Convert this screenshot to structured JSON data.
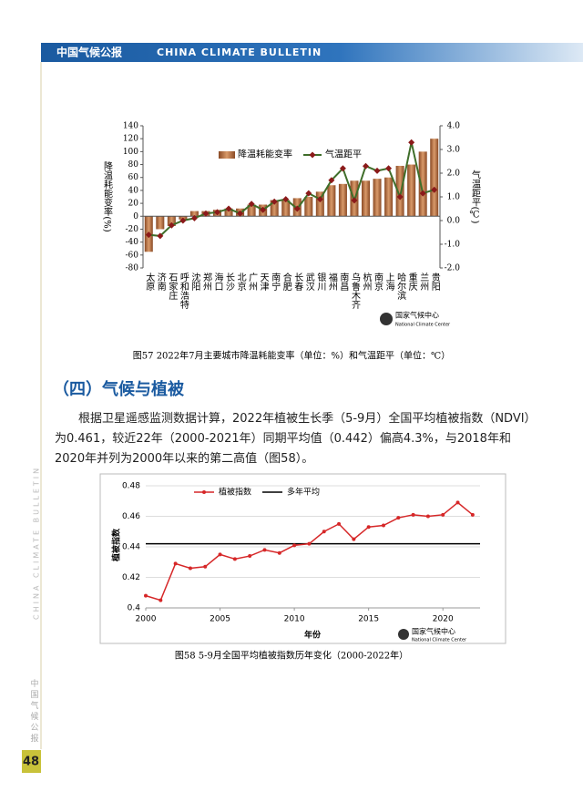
{
  "header": {
    "title_cn": "中国气候公报",
    "title_en": "CHINA CLIMATE BULLETIN"
  },
  "side_text": {
    "en": "CHINA CLIMATE BULLETIN",
    "cn": "中国气候公报"
  },
  "section": {
    "heading": "（四）气候与植被",
    "paragraph": "根据卫星遥感监测数据计算，2022年植被生长季（5-9月）全国平均植被指数（NDVI）为0.461，较近22年（2000-2021年）同期平均值（0.442）偏高4.3%，与2018年和2020年并列为2000年以来的第二高值（图58）。"
  },
  "page_number": "48",
  "chart_data": [
    {
      "type": "bar_line",
      "caption": "图57 2022年7月主要城市降温耗能变率（单位：%）和气温距平（单位：℃）",
      "logo": {
        "cn": "国家气候中心",
        "en": "National Climate Center"
      },
      "categories": [
        "太原",
        "济南",
        "石家庄",
        "呼和浩特",
        "沈阳",
        "郑州",
        "海口",
        "长沙",
        "北京",
        "广州",
        "天津",
        "南宁",
        "合肥",
        "长春",
        "武汉",
        "银川",
        "福州",
        "南昌",
        "乌鲁木齐",
        "杭州",
        "南京",
        "上海",
        "哈尔滨",
        "重庆",
        "兰州",
        "贵阳"
      ],
      "series": [
        {
          "name": "降温耗能变率",
          "color": "#c07a4a",
          "values": [
            -55,
            -20,
            -15,
            -5,
            8,
            8,
            10,
            12,
            12,
            18,
            18,
            25,
            25,
            28,
            30,
            38,
            48,
            50,
            55,
            55,
            58,
            60,
            78,
            80,
            100,
            120
          ]
        },
        {
          "name": "气温距平",
          "color": "#3f6e2a",
          "marker_color": "#8b1a1a",
          "axis": "y2",
          "values": [
            -0.6,
            -0.65,
            -0.2,
            0.0,
            0.1,
            0.3,
            0.35,
            0.5,
            0.3,
            0.7,
            0.45,
            0.8,
            0.9,
            0.5,
            1.15,
            0.9,
            1.7,
            2.2,
            0.85,
            2.3,
            2.1,
            2.2,
            1.0,
            3.3,
            1.15,
            1.3
          ]
        }
      ],
      "ylabel": "降温耗能变率(%)",
      "y2label": "气温距平(℃)",
      "ylim": [
        -80,
        140
      ],
      "yticks": [
        -80,
        -60,
        -40,
        -20,
        0,
        20,
        40,
        60,
        80,
        100,
        120,
        140
      ],
      "y2lim": [
        -2,
        4
      ],
      "y2ticks": [
        {
          "value": -2,
          "label": "-2.0"
        },
        {
          "value": -1,
          "label": "-1.0"
        },
        {
          "value": 0,
          "label": "0.0"
        },
        {
          "value": 1,
          "label": "1.0"
        },
        {
          "value": 2,
          "label": "2.0"
        },
        {
          "value": 3,
          "label": "3.0"
        },
        {
          "value": 4,
          "label": "4.0"
        }
      ]
    },
    {
      "type": "line",
      "caption": "图58 5-9月全国平均植被指数历年变化（2000-2022年）",
      "logo": {
        "cn": "国家气候中心",
        "en": "National Climate Center"
      },
      "x": [
        2000,
        2001,
        2002,
        2003,
        2004,
        2005,
        2006,
        2007,
        2008,
        2009,
        2010,
        2011,
        2012,
        2013,
        2014,
        2015,
        2016,
        2017,
        2018,
        2019,
        2020,
        2021,
        2022
      ],
      "series": [
        {
          "name": "植被指数",
          "color": "#d62728",
          "values": [
            0.408,
            0.405,
            0.429,
            0.426,
            0.427,
            0.435,
            0.432,
            0.434,
            0.438,
            0.436,
            0.441,
            0.442,
            0.45,
            0.455,
            0.445,
            0.453,
            0.454,
            0.459,
            0.461,
            0.46,
            0.461,
            0.469,
            0.461
          ]
        }
      ],
      "reference": {
        "name": "多年平均",
        "value": 0.442,
        "color": "#000000"
      },
      "xlabel": "年份",
      "ylabel": "植被指数",
      "xlim": [
        2000,
        2022.5
      ],
      "xticks": [
        2000,
        2005,
        2010,
        2015,
        2020
      ],
      "ylim": [
        0.4,
        0.48
      ],
      "yticks": [
        0.4,
        0.42,
        0.44,
        0.46,
        0.48
      ],
      "grid": true
    }
  ]
}
